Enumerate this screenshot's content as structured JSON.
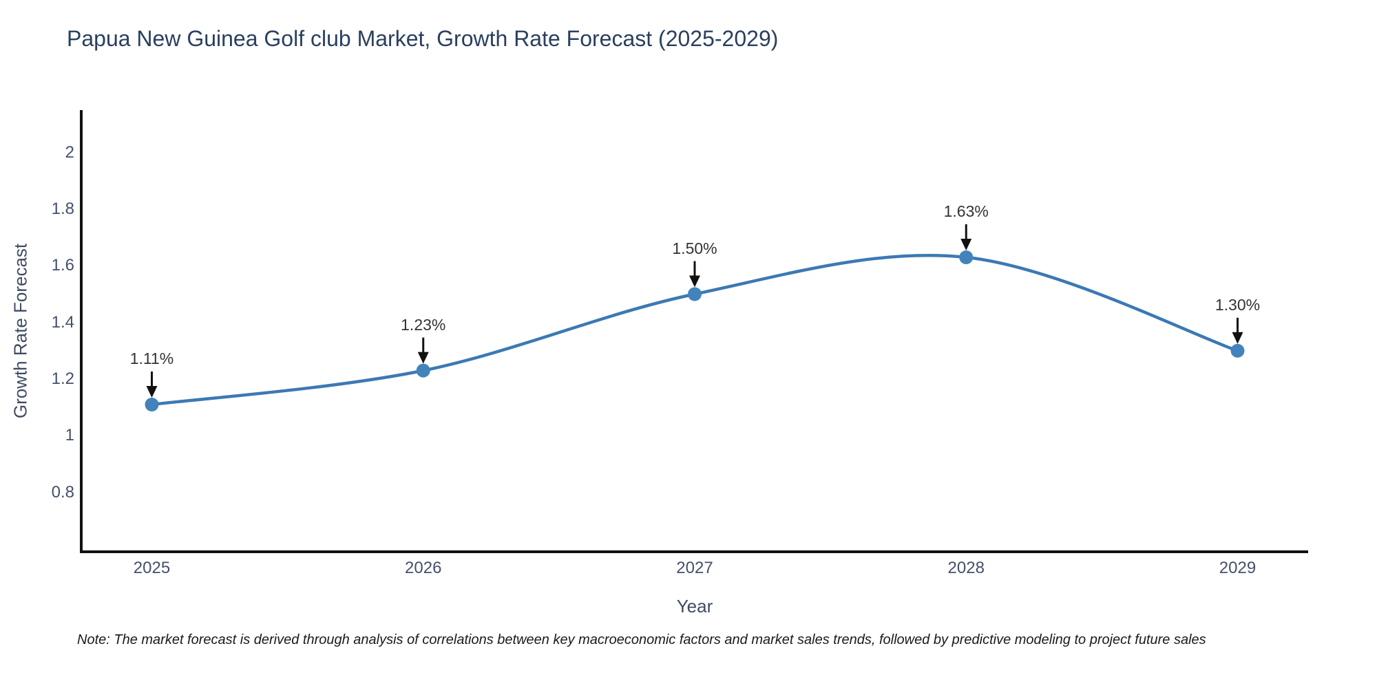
{
  "page": {
    "note": "Note: The market forecast is derived through analysis of correlations between key macroeconomic factors and market sales trends, followed by predictive modeling to project future sales"
  },
  "chart_data": {
    "type": "line",
    "title": "Papua New Guinea Golf club Market, Growth Rate Forecast (2025-2029)",
    "xlabel": "Year",
    "ylabel": "Growth Rate Forecast",
    "x": [
      2025,
      2026,
      2027,
      2028,
      2029
    ],
    "y": [
      1.11,
      1.23,
      1.5,
      1.63,
      1.3
    ],
    "series": [
      {
        "name": "Growth Rate Forecast",
        "values": [
          1.11,
          1.23,
          1.5,
          1.63,
          1.3
        ]
      }
    ],
    "point_labels": [
      "1.11%",
      "1.23%",
      "1.50%",
      "1.63%",
      "1.30%"
    ],
    "xtick_labels": [
      "2025",
      "2026",
      "2027",
      "2028",
      "2029"
    ],
    "ytick_values": [
      0.8,
      1,
      1.2,
      1.4,
      1.6,
      1.8,
      2
    ],
    "ytick_labels": [
      "0.8",
      "1",
      "1.2",
      "1.4",
      "1.6",
      "1.8",
      "2"
    ],
    "xlim": [
      2024.74,
      2029.26
    ],
    "ylim": [
      0.59,
      2.15
    ],
    "grid": false,
    "legend": false,
    "line_shape": "spline",
    "line_color": "#3c79b3",
    "marker_color": "#4383bc",
    "axis_color": "#111111",
    "arrow_color": "#111111",
    "annotation_color": "#333333",
    "title_color": "#2a3f5f"
  }
}
